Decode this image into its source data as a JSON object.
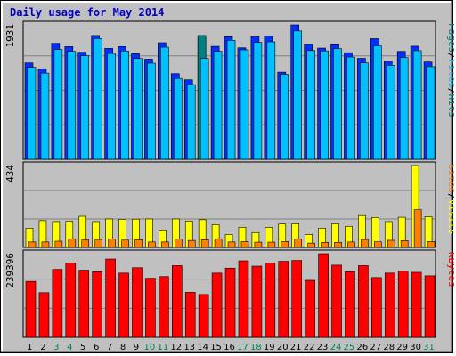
{
  "title": "Daily usage for May 2014",
  "chart_data": [
    {
      "type": "bar",
      "panel": "hits-files-pages",
      "categories": [
        "1",
        "2",
        "3",
        "4",
        "5",
        "6",
        "7",
        "8",
        "9",
        "10",
        "11",
        "12",
        "13",
        "14",
        "15",
        "16",
        "17",
        "18",
        "19",
        "20",
        "21",
        "22",
        "23",
        "24",
        "25",
        "26",
        "27",
        "28",
        "29",
        "30",
        "31"
      ],
      "weekend_days": [
        "3",
        "4",
        "10",
        "11",
        "17",
        "18",
        "24",
        "25",
        "31"
      ],
      "ylim": [
        0,
        1931
      ],
      "ymax_label": "1931",
      "right_label": [
        "Pages",
        "/",
        "Files",
        "/",
        "Hits"
      ],
      "series": [
        {
          "name": "Hits",
          "color": "#0000ff",
          "values": [
            1385,
            1299,
            1666,
            1619,
            1538,
            1779,
            1594,
            1620,
            1517,
            1439,
            1675,
            1231,
            1142,
            1777,
            1623,
            1762,
            1602,
            1765,
            1772,
            1252,
            1931,
            1651,
            1598,
            1646,
            1532,
            1451,
            1733,
            1409,
            1551,
            1625,
            1398
          ]
        },
        {
          "name": "Files",
          "color": "#00c0ff",
          "values": [
            1321,
            1239,
            1578,
            1551,
            1489,
            1735,
            1521,
            1556,
            1449,
            1381,
            1611,
            1161,
            1073,
            1450,
            1552,
            1708,
            1573,
            1680,
            1688,
            1220,
            1844,
            1563,
            1558,
            1590,
            1470,
            1385,
            1630,
            1351,
            1462,
            1561,
            1331
          ]
        },
        {
          "name": "Pages",
          "color": "#008080",
          "values": [
            0,
            0,
            0,
            0,
            0,
            0,
            0,
            0,
            0,
            0,
            0,
            0,
            0,
            1777,
            0,
            0,
            0,
            0,
            0,
            0,
            0,
            0,
            0,
            0,
            0,
            0,
            0,
            0,
            0,
            0,
            0
          ]
        }
      ]
    },
    {
      "type": "bar",
      "panel": "visits-sites",
      "ylim": [
        0,
        434
      ],
      "ymax_label": "434",
      "right_label": [
        "Sites",
        "/",
        "Visits"
      ],
      "series": [
        {
          "name": "Visits",
          "color": "#ffff00",
          "values": [
            102,
            142,
            137,
            138,
            165,
            137,
            151,
            149,
            150,
            151,
            93,
            151,
            140,
            147,
            121,
            69,
            107,
            79,
            107,
            124,
            126,
            69,
            102,
            126,
            112,
            169,
            159,
            137,
            160,
            434,
            163
          ]
        },
        {
          "name": "Sites",
          "color": "#ff8000",
          "values": [
            29,
            29,
            33,
            46,
            40,
            42,
            45,
            39,
            41,
            29,
            29,
            44,
            37,
            41,
            46,
            29,
            31,
            28,
            28,
            31,
            45,
            23,
            27,
            27,
            29,
            42,
            30,
            38,
            36,
            200,
            31
          ]
        }
      ]
    },
    {
      "type": "bar",
      "panel": "kbytes",
      "ylim": [
        0,
        239396
      ],
      "ymax_label": "239396",
      "right_label": [
        "KBytes"
      ],
      "series": [
        {
          "name": "KBytes",
          "color": "#ff0000",
          "values": [
            160036,
            127802,
            194315,
            213223,
            192109,
            187813,
            224048,
            183815,
            199237,
            168854,
            173766,
            205136,
            128839,
            122567,
            183815,
            198000,
            219000,
            203700,
            213000,
            217600,
            220000,
            163000,
            239396,
            206500,
            187813,
            205136,
            171000,
            183815,
            190000,
            186000,
            176000
          ]
        }
      ]
    }
  ]
}
